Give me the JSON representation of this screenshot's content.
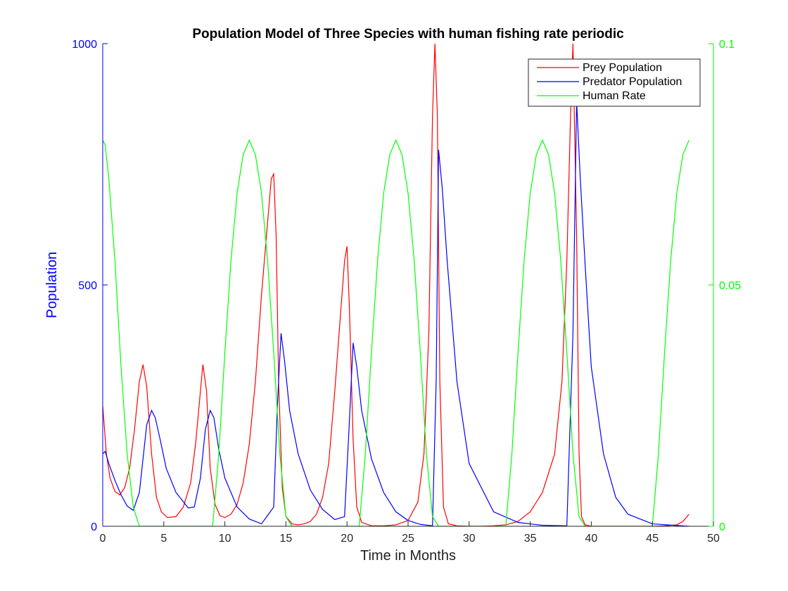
{
  "chart_data": {
    "type": "line",
    "title": "Population Model of Three Species with human fishing rate periodic",
    "xlabel": "Time in Months",
    "ylabel_left": "Population",
    "ylabel_right": "",
    "xlim": [
      0,
      50
    ],
    "ylim_left": [
      0,
      1000
    ],
    "ylim_right": [
      0,
      0.1
    ],
    "x_ticks": [
      "0",
      "5",
      "10",
      "15",
      "20",
      "25",
      "30",
      "35",
      "40",
      "45",
      "50"
    ],
    "y_left_ticks": [
      "0",
      "500",
      "1000"
    ],
    "y_right_ticks": [
      "0",
      "0.05",
      "0.1"
    ],
    "grid": false,
    "legend_position": "top-right",
    "colors": {
      "prey": "#ff0000",
      "predator": "#0000ff",
      "human": "#00ff00",
      "left_axis": "#0000ff",
      "right_axis": "#00ff00"
    },
    "series": [
      {
        "name": "Prey Population",
        "axis": "left",
        "x": [
          0,
          0.3,
          0.6,
          1.0,
          1.4,
          1.8,
          2.2,
          2.6,
          3.0,
          3.3,
          3.6,
          4.0,
          4.4,
          4.8,
          5.3,
          6.0,
          6.6,
          7.2,
          7.6,
          8.0,
          8.2,
          8.5,
          8.8,
          9.2,
          9.6,
          10.0,
          10.5,
          11.0,
          11.5,
          12.0,
          12.5,
          13.0,
          13.5,
          13.8,
          14.0,
          14.2,
          14.4,
          14.7,
          15.0,
          15.5,
          16.0,
          16.5,
          17.0,
          17.5,
          18.0,
          18.5,
          19.0,
          19.5,
          19.8,
          20.0,
          20.2,
          20.5,
          20.8,
          21.2,
          22.0,
          23.0,
          24.0,
          25.0,
          25.8,
          26.3,
          26.7,
          27.0,
          27.2,
          27.4,
          27.6,
          27.9,
          28.3,
          29.0,
          30.0,
          31.0,
          32.0,
          33.0,
          34.0,
          35.0,
          36.0,
          37.0,
          37.6,
          38.0,
          38.3,
          38.5,
          38.8,
          39.0,
          39.2,
          39.5,
          40.0,
          41.0,
          42.0,
          43.0,
          44.0,
          45.0,
          46.0,
          47.0,
          47.5,
          48.0
        ],
        "y": [
          250,
          150,
          100,
          72,
          65,
          80,
          120,
          200,
          300,
          335,
          290,
          150,
          60,
          30,
          18,
          20,
          40,
          90,
          170,
          280,
          335,
          280,
          120,
          45,
          22,
          18,
          25,
          45,
          90,
          170,
          300,
          480,
          630,
          720,
          730,
          600,
          300,
          80,
          20,
          5,
          3,
          5,
          10,
          25,
          60,
          130,
          280,
          450,
          550,
          580,
          450,
          180,
          40,
          8,
          1,
          1,
          3,
          12,
          50,
          150,
          400,
          850,
          1000,
          850,
          300,
          40,
          5,
          1,
          0,
          0,
          1,
          3,
          10,
          30,
          70,
          150,
          300,
          550,
          850,
          1000,
          600,
          150,
          20,
          3,
          0,
          0,
          0,
          0,
          0,
          0,
          1,
          3,
          10,
          25
        ]
      },
      {
        "name": "Predator Population",
        "axis": "left",
        "x": [
          0,
          0.2,
          0.5,
          1.0,
          1.5,
          2.0,
          2.5,
          3.0,
          3.3,
          3.6,
          4.0,
          4.3,
          4.7,
          5.2,
          6.0,
          7.0,
          7.5,
          8.0,
          8.4,
          8.8,
          9.1,
          9.5,
          10.0,
          11.0,
          12.0,
          13.0,
          14.0,
          14.3,
          14.6,
          14.9,
          15.3,
          16.0,
          17.0,
          18.0,
          19.0,
          19.8,
          20.2,
          20.5,
          20.8,
          21.2,
          22.0,
          23.0,
          24.0,
          25.0,
          26.0,
          27.0,
          27.3,
          27.5,
          27.8,
          28.2,
          29.0,
          30.0,
          32.0,
          34.0,
          36.0,
          38.0,
          38.5,
          38.8,
          39.1,
          39.5,
          40.0,
          41.0,
          42.0,
          43.0,
          45.0,
          48.0
        ],
        "y": [
          150,
          155,
          130,
          95,
          65,
          42,
          33,
          70,
          140,
          210,
          240,
          225,
          180,
          120,
          70,
          38,
          40,
          100,
          200,
          240,
          225,
          160,
          100,
          40,
          15,
          5,
          40,
          250,
          400,
          340,
          240,
          150,
          75,
          35,
          14,
          20,
          220,
          380,
          330,
          240,
          140,
          70,
          30,
          12,
          4,
          1,
          300,
          780,
          700,
          550,
          300,
          130,
          30,
          8,
          2,
          1,
          400,
          880,
          720,
          540,
          330,
          150,
          60,
          25,
          5,
          0
        ]
      },
      {
        "name": "Human Rate",
        "axis": "right",
        "x": [
          0,
          0.2,
          0.5,
          1,
          1.5,
          2,
          2.5,
          3,
          4,
          5,
          6,
          7,
          8,
          8.5,
          9,
          9.5,
          10,
          10.5,
          11,
          11.5,
          12,
          12.5,
          13,
          13.5,
          14,
          14.5,
          15,
          15.5,
          16,
          17,
          18,
          19,
          20,
          20.5,
          21,
          21.5,
          22,
          22.5,
          23,
          23.5,
          24,
          24.5,
          25,
          25.5,
          26,
          26.5,
          27,
          27.5,
          28,
          29,
          30,
          31,
          32,
          32.5,
          33,
          33.5,
          34,
          34.5,
          35,
          35.5,
          36,
          36.5,
          37,
          37.5,
          38,
          38.5,
          39,
          39.5,
          40,
          41,
          42,
          43,
          44,
          44.5,
          45,
          45.5,
          46,
          46.5,
          47,
          47.5,
          48
        ],
        "y": [
          0.08,
          0.079,
          0.072,
          0.055,
          0.033,
          0.015,
          0.004,
          0,
          0,
          0,
          0,
          0,
          0,
          0,
          0,
          0.015,
          0.036,
          0.055,
          0.069,
          0.077,
          0.08,
          0.077,
          0.069,
          0.055,
          0.036,
          0.015,
          0.002,
          0,
          0,
          0,
          0,
          0,
          0,
          0,
          0,
          0.015,
          0.036,
          0.055,
          0.069,
          0.077,
          0.08,
          0.077,
          0.069,
          0.055,
          0.036,
          0.015,
          0.002,
          0,
          0,
          0,
          0,
          0,
          0,
          0,
          0,
          0.015,
          0.036,
          0.055,
          0.069,
          0.077,
          0.08,
          0.077,
          0.069,
          0.055,
          0.036,
          0.015,
          0.002,
          0,
          0,
          0,
          0,
          0,
          0,
          0,
          0,
          0.015,
          0.036,
          0.055,
          0.069,
          0.077,
          0.08
        ]
      }
    ]
  }
}
